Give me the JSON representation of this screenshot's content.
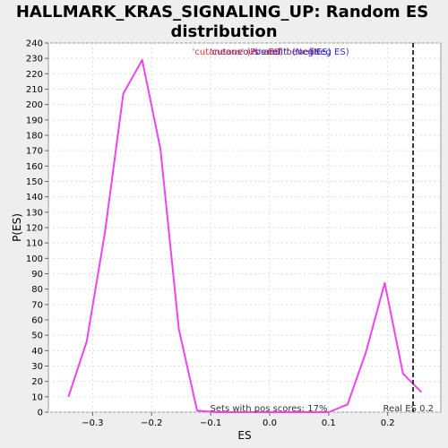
{
  "chart_data": {
    "type": "line",
    "title": "HALLMARK_KRAS_SIGNALING_UP: Random ES distribution",
    "xlabel": "ES",
    "ylabel": "P(ES)",
    "xlim": [
      -0.375,
      0.29
    ],
    "ylim": [
      0,
      240
    ],
    "x_ticks": [
      -0.3,
      -0.2,
      -0.1,
      0.0,
      0.1,
      0.2
    ],
    "x_tick_labels": [
      "−0.3",
      "−0.2",
      "−0.1",
      "0.0",
      "0.1",
      "0.2"
    ],
    "y_ticks": [
      0,
      10,
      20,
      30,
      40,
      50,
      60,
      70,
      80,
      90,
      100,
      110,
      120,
      130,
      140,
      150,
      160,
      170,
      180,
      190,
      200,
      210,
      220,
      230,
      240
    ],
    "grid": true,
    "series": [
      {
        "color": "#ee44ee",
        "x": [
          -0.341,
          -0.31,
          -0.279,
          -0.248,
          -0.216,
          -0.185,
          -0.154,
          -0.123,
          -0.092,
          -0.061,
          -0.03,
          0.002,
          0.033,
          0.064,
          0.1,
          0.132,
          0.163,
          0.195,
          0.226,
          0.257
        ],
        "y": [
          10,
          46,
          117,
          207,
          229,
          171,
          54,
          1,
          0,
          0,
          0,
          0,
          0,
          0,
          0,
          5,
          39,
          84,
          25,
          13
        ]
      }
    ],
    "real_es": 0.243,
    "annotations": {
      "pos_label": "'cutaneous' (Pos ES)",
      "neg_label": "'benefit' (Neg ES)",
      "overlap_label": "'cutaneous' and 'benefit'",
      "sets_label": "Sets with pos scores: 17%",
      "real_es_label": "Real ES 0.2"
    },
    "colors": {
      "pos": "#dd3333",
      "neg": "#3333cc",
      "overlap": "#772277",
      "line": "#ee44ee",
      "real_es": "#333333"
    }
  }
}
